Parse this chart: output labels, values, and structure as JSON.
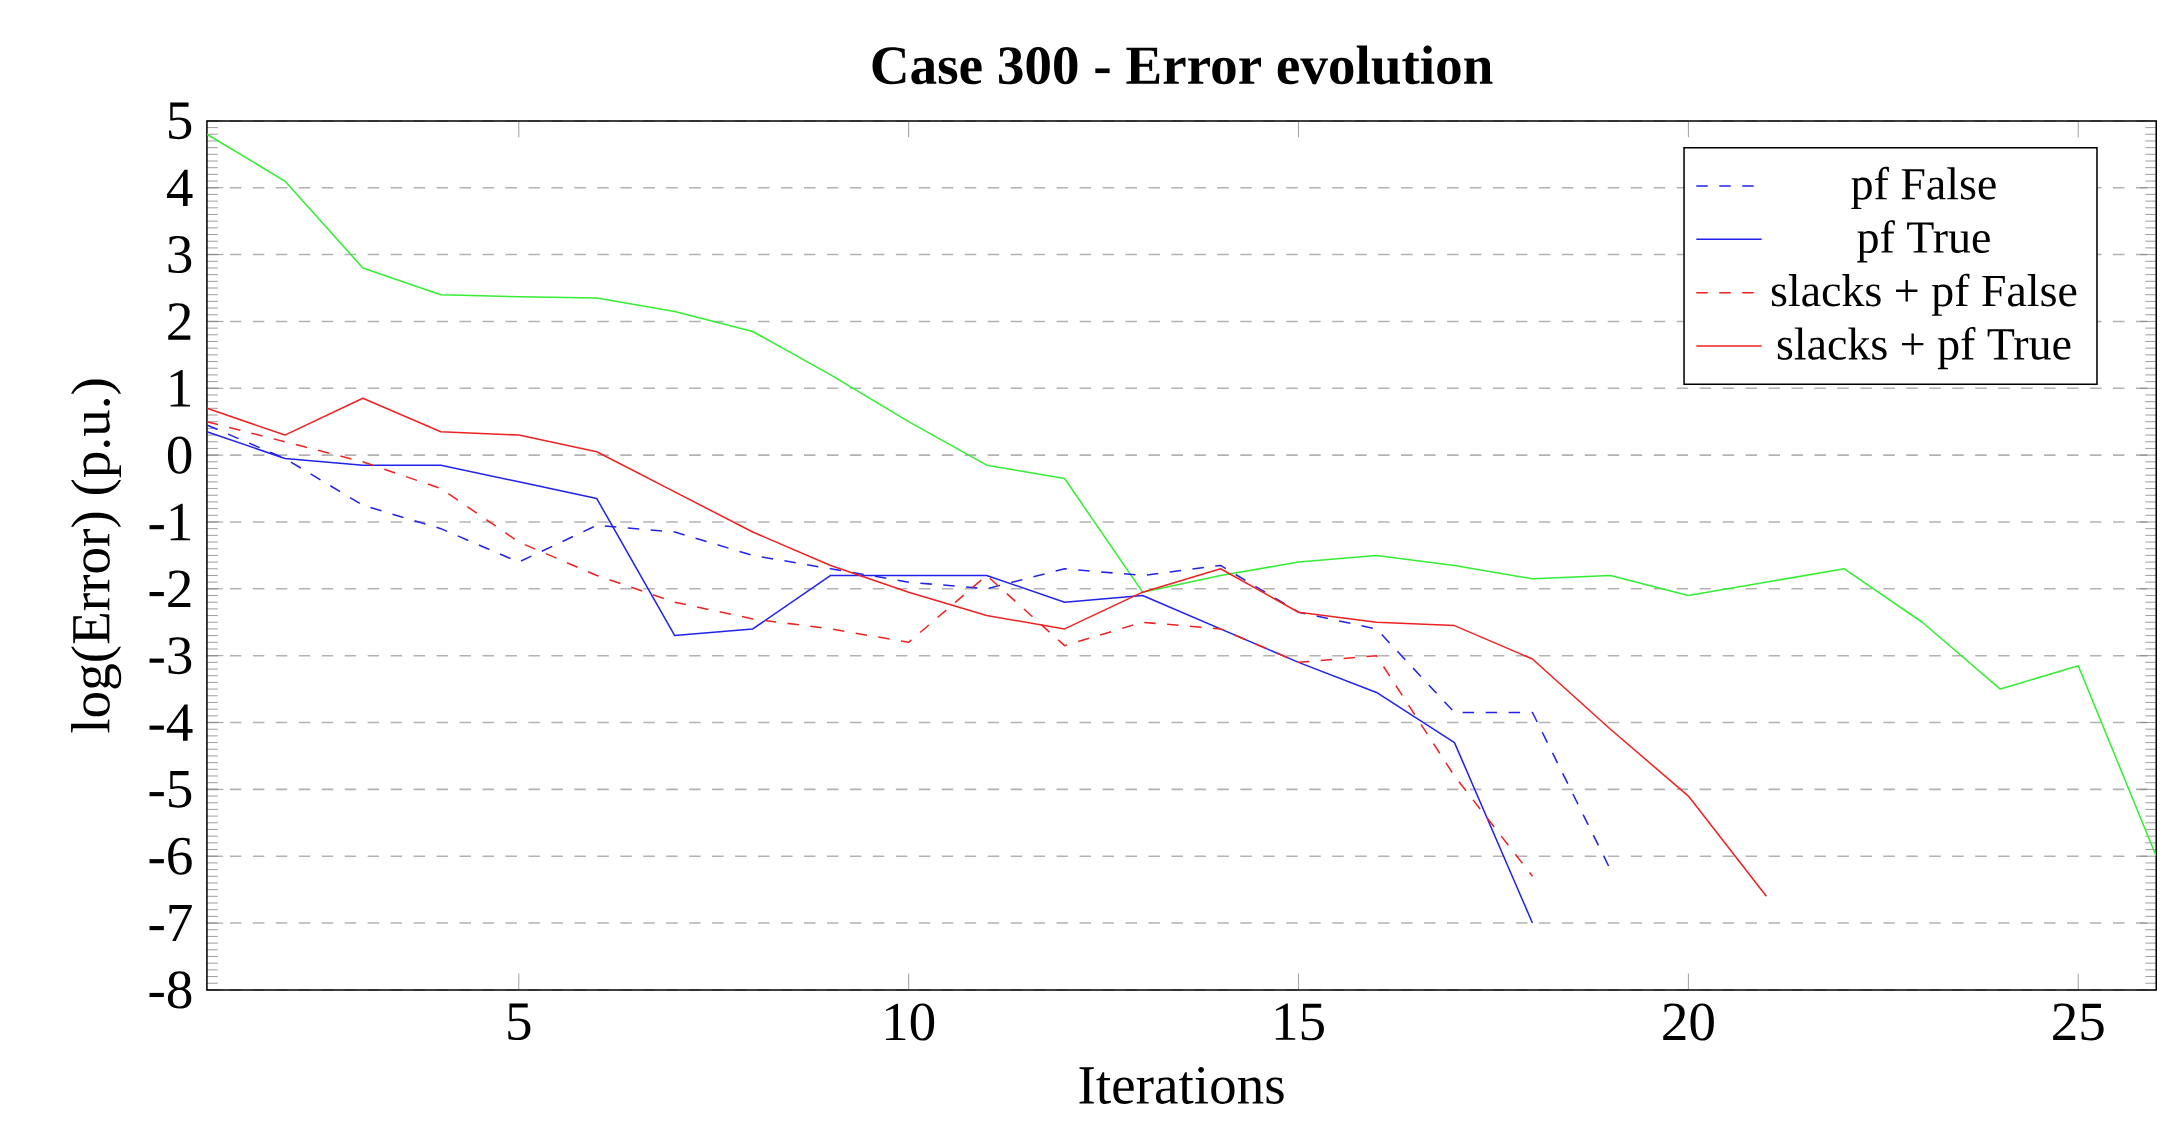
{
  "chart_data": {
    "type": "line",
    "title": "Case 300 - Error evolution",
    "xlabel": "Iterations",
    "ylabel": "log(Error) (p.u.)",
    "xlim": [
      1,
      26
    ],
    "xticks": [
      5,
      10,
      15,
      20,
      25
    ],
    "ylim": [
      -8,
      5
    ],
    "yticks": [
      -8,
      -7,
      -6,
      -5,
      -4,
      -3,
      -2,
      -1,
      0,
      1,
      2,
      3,
      4,
      5
    ],
    "grid": "y",
    "legend": "top right",
    "marker": "none",
    "series": [
      {
        "color": "#33ee33",
        "line_style": "solid",
        "x": [
          1,
          2,
          3,
          4,
          5,
          6,
          7,
          8,
          9,
          10,
          11,
          12,
          13,
          14,
          15,
          16,
          17,
          18,
          19,
          20,
          21,
          22,
          23,
          24,
          25,
          26
        ],
        "values": [
          4.8,
          4.1,
          2.8,
          2.4,
          2.37,
          2.35,
          2.15,
          1.85,
          1.2,
          0.5,
          -0.15,
          -0.35,
          -2.05,
          -1.8,
          -1.6,
          -1.5,
          -1.65,
          -1.85,
          -1.8,
          -2.1,
          -1.9,
          -1.7,
          -2.5,
          -3.5,
          -3.15,
          -6.0
        ]
      },
      {
        "name": "pf False",
        "color": "#2222ee",
        "line_style": "dashed",
        "x": [
          1,
          2,
          3,
          4,
          5,
          6,
          7,
          8,
          9,
          10,
          11,
          12,
          13,
          14,
          15,
          16,
          17,
          18,
          19
        ],
        "values": [
          0.45,
          -0.05,
          -0.75,
          -1.1,
          -1.6,
          -1.05,
          -1.15,
          -1.5,
          -1.7,
          -1.9,
          -2.0,
          -1.7,
          -1.8,
          -1.65,
          -2.35,
          -2.6,
          -3.85,
          -3.85,
          -6.2
        ]
      },
      {
        "name": "pf True",
        "color": "#2222ee",
        "line_style": "solid",
        "x": [
          1,
          2,
          3,
          4,
          5,
          6,
          7,
          8,
          9,
          10,
          11,
          12,
          13,
          14,
          15,
          16,
          17,
          18
        ],
        "values": [
          0.35,
          -0.05,
          -0.15,
          -0.15,
          -0.4,
          -0.65,
          -2.7,
          -2.6,
          -1.8,
          -1.8,
          -1.8,
          -2.2,
          -2.1,
          -2.6,
          -3.1,
          -3.55,
          -4.3,
          -7.0
        ]
      },
      {
        "name": "slacks + pf False",
        "color": "#ee2222",
        "line_style": "dashed",
        "x": [
          1,
          2,
          3,
          4,
          5,
          6,
          7,
          8,
          9,
          10,
          11,
          12,
          13,
          14,
          15,
          16,
          17,
          18
        ],
        "values": [
          0.5,
          0.2,
          -0.1,
          -0.5,
          -1.3,
          -1.8,
          -2.2,
          -2.45,
          -2.6,
          -2.8,
          -1.8,
          -2.85,
          -2.5,
          -2.6,
          -3.1,
          -3.0,
          -4.8,
          -6.3
        ]
      },
      {
        "name": "slacks + pf True",
        "color": "#ee2222",
        "line_style": "solid",
        "x": [
          1,
          2,
          3,
          4,
          5,
          6,
          7,
          8,
          9,
          10,
          11,
          12,
          13,
          14,
          15,
          16,
          17,
          18,
          19,
          20,
          21
        ],
        "values": [
          0.7,
          0.3,
          0.85,
          0.35,
          0.3,
          0.05,
          -0.55,
          -1.15,
          -1.65,
          -2.05,
          -2.4,
          -2.6,
          -2.05,
          -1.7,
          -2.35,
          -2.5,
          -2.55,
          -3.05,
          -4.1,
          -5.1,
          -6.6
        ]
      }
    ]
  }
}
